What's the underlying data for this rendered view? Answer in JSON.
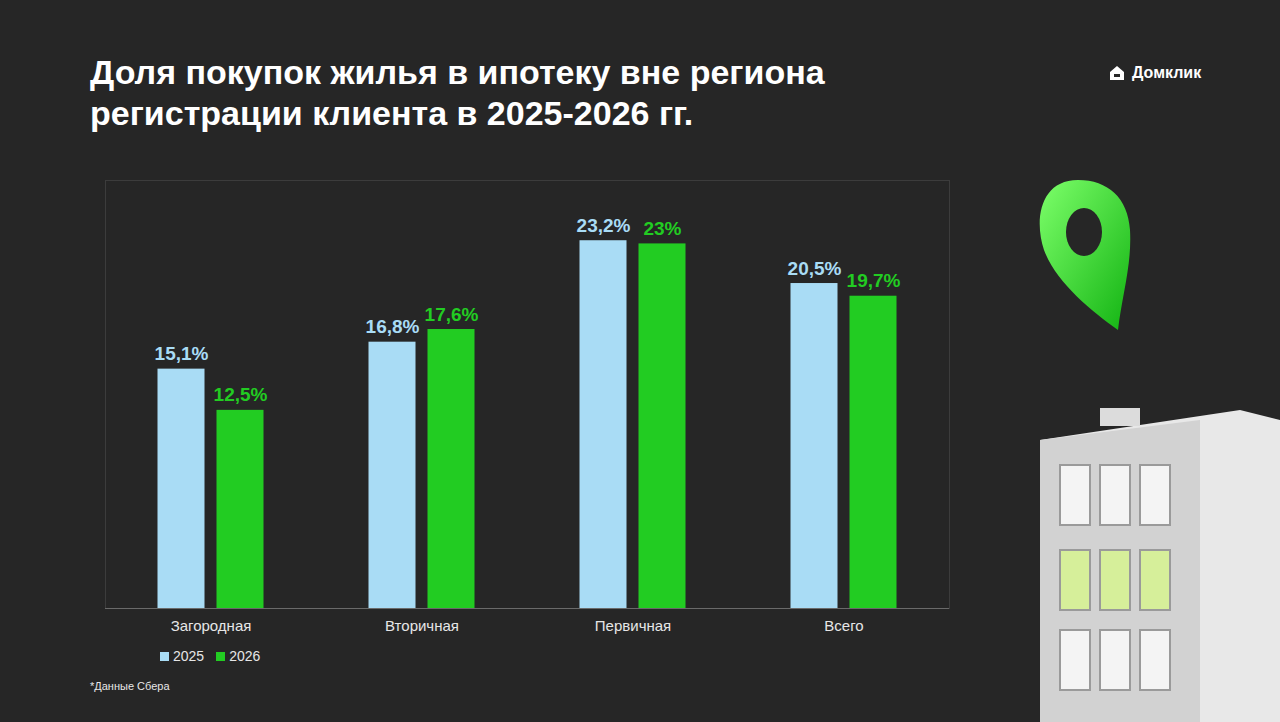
{
  "chart_data": {
    "type": "bar",
    "title": "Доля покупок жилья в ипотеку вне региона регистрации клиента в 2025-2026 гг.",
    "brand": "Домклик",
    "note": "*Данные Сбера",
    "categories": [
      "Загородная",
      "Вторичная",
      "Первичная",
      "Всего"
    ],
    "series": [
      {
        "name": "2025",
        "color": "#a9dcf5",
        "values": [
          15.1,
          16.8,
          23.2,
          20.5
        ],
        "value_labels": [
          "15,1%",
          "16,8%",
          "23,2%",
          "20,5%"
        ]
      },
      {
        "name": "2026",
        "color": "#22cc22",
        "values": [
          12.5,
          17.6,
          23,
          19.7
        ],
        "value_labels": [
          "12,5%",
          "17,6%",
          "23%",
          "19,7%"
        ]
      }
    ],
    "ylim": [
      0,
      27
    ],
    "yticks": [],
    "grid": false,
    "legend": "bottom-left",
    "data_labels": true,
    "tick_labels": "x"
  }
}
